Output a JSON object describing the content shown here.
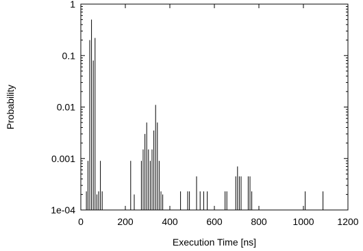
{
  "chart_data": {
    "type": "bar",
    "title": "",
    "xlabel": "Execution Time [ns]",
    "ylabel": "Probability",
    "xlim": [
      0,
      1200
    ],
    "ylim": [
      0.0001,
      1
    ],
    "yscale": "log",
    "grid": false,
    "legend": "none",
    "bar_color": "#000000",
    "x_ticks": [
      0,
      200,
      400,
      600,
      800,
      1000,
      1200
    ],
    "x_tick_labels": [
      "0",
      "200",
      "400",
      "600",
      "800",
      "1000",
      "1200"
    ],
    "y_ticks": [
      0.0001,
      0.001,
      0.01,
      0.1,
      1
    ],
    "y_tick_labels": [
      "1e-04",
      "0.001",
      "0.01",
      "0.1",
      "1"
    ],
    "x": [
      25,
      32,
      40,
      48,
      56,
      64,
      72,
      80,
      88,
      96,
      224,
      240,
      272,
      280,
      288,
      296,
      304,
      312,
      320,
      328,
      336,
      344,
      352,
      360,
      368,
      448,
      480,
      488,
      520,
      536,
      552,
      568,
      648,
      656,
      696,
      704,
      712,
      720,
      752,
      760,
      768,
      1008,
      1088
    ],
    "values": [
      0.00023,
      0.0009,
      0.2,
      0.5,
      0.08,
      0.22,
      0.0002,
      0.00023,
      0.0009,
      0.00023,
      0.0009,
      0.0002,
      0.0009,
      0.0015,
      0.003,
      0.005,
      0.0015,
      0.0009,
      0.0015,
      0.0035,
      0.011,
      0.005,
      0.0009,
      0.00023,
      0.0002,
      0.00023,
      0.00023,
      0.00023,
      0.00045,
      0.00023,
      0.00023,
      0.00023,
      0.00023,
      0.00023,
      0.00045,
      0.0007,
      0.00045,
      0.00045,
      0.00045,
      0.00045,
      0.00023,
      0.00023,
      0.00023
    ]
  }
}
